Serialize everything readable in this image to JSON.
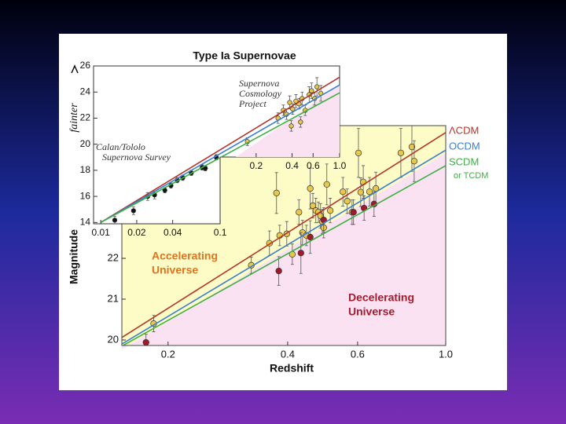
{
  "chart_data": [
    {
      "type": "scatter",
      "title": "Type Ia Supernovae",
      "xlabel": "Redshift",
      "ylabel": "Magnitude",
      "xscale": "log",
      "xlim": [
        0.153,
        1.0
      ],
      "ylim": [
        19.865,
        25.25
      ],
      "xticks": [
        0.2,
        0.4,
        0.6,
        {
          "value": 1,
          "label": "1.0"
        }
      ],
      "yticks": [
        20,
        21,
        22
      ],
      "legend": "outside right",
      "legend_note": "or TCDM",
      "series": [
        {
          "color": "#e8c84a",
          "x": [
            0.184,
            0.324,
            0.36,
            0.375,
            0.382,
            0.398,
            0.411,
            0.427,
            0.436,
            0.446,
            0.456,
            0.463,
            0.471,
            0.478,
            0.484,
            0.489,
            0.493,
            0.502,
            0.512,
            0.551,
            0.565,
            0.581,
            0.603,
            0.611,
            0.62,
            0.643,
            0.667,
            0.771,
            0.822,
            0.833
          ],
          "values": [
            20.4,
            21.83,
            22.37,
            23.6,
            22.56,
            22.6,
            22.1,
            23.13,
            22.63,
            22.56,
            23.71,
            23.29,
            23.17,
            23.13,
            23.04,
            22.9,
            22.75,
            23.81,
            23.17,
            23.63,
            23.4,
            23.13,
            24.58,
            23.62,
            23.87,
            23.63,
            23.71,
            24.58,
            24.73,
            24.38
          ],
          "errors": [
            0.2,
            0.2,
            0.3,
            0.5,
            0.25,
            0.3,
            0.25,
            0.3,
            0.3,
            0.25,
            0.5,
            0.3,
            0.3,
            0.25,
            0.3,
            0.3,
            0.25,
            0.5,
            0.3,
            0.35,
            0.3,
            0.3,
            0.6,
            0.35,
            0.4,
            0.35,
            0.4,
            0.6,
            0.6,
            0.5
          ]
        },
        {
          "color": "#a3192b",
          "x": [
            0.176,
            0.38,
            0.432,
            0.456,
            0.493,
            0.586,
            0.623,
            0.66
          ],
          "values": [
            19.94,
            21.69,
            22.13,
            22.52,
            22.94,
            23.13,
            23.23,
            23.33
          ],
          "errors": [
            0.2,
            0.35,
            0.5,
            0.4,
            0.3,
            0.3,
            0.3,
            0.3
          ]
        },
        {
          "name": "ΛCDM",
          "type": "line",
          "color": "#b5352a",
          "x": [
            0.153,
            1.0
          ],
          "values": [
            20.06,
            25.08
          ]
        },
        {
          "name": "OCDM",
          "type": "line",
          "color": "#3a7fd5",
          "x": [
            0.153,
            1.0
          ],
          "values": [
            19.9,
            24.65
          ]
        },
        {
          "name": "SCDM",
          "type": "line",
          "color": "#3cb043",
          "x": [
            0.153,
            1.0
          ],
          "values": [
            19.85,
            24.27
          ]
        }
      ],
      "annotations": [
        {
          "text": [
            "Accelerating",
            "Universe"
          ]
        },
        {
          "text": [
            "Decelerating",
            "Universe"
          ]
        }
      ]
    },
    {
      "type": "scatter",
      "ylabel": "fainter",
      "xscale": "log",
      "xlim": [
        0.0087,
        1.0
      ],
      "ylim": [
        13.9,
        26
      ],
      "xticks": [
        0.01,
        0.02,
        0.04,
        0.1,
        0.2,
        0.4,
        0.6,
        {
          "value": 1,
          "label": "1.0"
        }
      ],
      "yticks": [
        14,
        16,
        18,
        20,
        22,
        24,
        26
      ],
      "series": [
        {
          "color": "#111111",
          "x": [
            0.0131,
            0.0188,
            0.0247,
            0.0282,
            0.0344,
            0.0387,
            0.0437,
            0.0486,
            0.0573,
            0.0707,
            0.0751,
            0.0927
          ],
          "values": [
            14.18,
            14.9,
            15.99,
            16.11,
            16.47,
            16.83,
            17.25,
            17.43,
            17.8,
            18.22,
            18.16,
            19.0
          ],
          "errors": [
            0.3,
            0.3,
            0.3,
            0.3,
            0.2,
            0.2,
            0.2,
            0.2,
            0.2,
            0.2,
            0.2,
            0.2
          ]
        },
        {
          "color": "#e8c84a",
          "x": [
            0.169,
            0.305,
            0.338,
            0.359,
            0.382,
            0.405,
            0.431,
            0.457,
            0.485,
            0.515,
            0.556,
            0.582,
            0.618,
            0.646,
            0.697,
            0.394,
            0.471
          ],
          "values": [
            20.2,
            22.0,
            22.6,
            22.3,
            23.2,
            22.7,
            23.3,
            23.1,
            23.5,
            22.6,
            23.8,
            24.1,
            23.5,
            24.4,
            23.9,
            21.4,
            21.7
          ],
          "errors": [
            0.3,
            0.4,
            0.4,
            0.4,
            0.5,
            0.4,
            0.5,
            0.4,
            0.5,
            0.4,
            0.6,
            0.6,
            0.5,
            0.7,
            0.6,
            0.4,
            0.4
          ]
        },
        {
          "type": "line",
          "color": "#b5352a",
          "x": [
            0.01,
            1.0
          ],
          "values": [
            14.0,
            25.14
          ]
        },
        {
          "type": "line",
          "color": "#3a7fd5",
          "x": [
            0.01,
            1.0
          ],
          "values": [
            14.0,
            24.54
          ]
        },
        {
          "type": "line",
          "color": "#3cb043",
          "x": [
            0.01,
            1.0
          ],
          "values": [
            14.0,
            23.94
          ]
        }
      ],
      "annotations": [
        {
          "text": [
            "Supernova",
            "Cosmology",
            "Project"
          ]
        },
        {
          "text": [
            "Calan/Tololo",
            "Supernova Survey"
          ]
        }
      ]
    }
  ]
}
